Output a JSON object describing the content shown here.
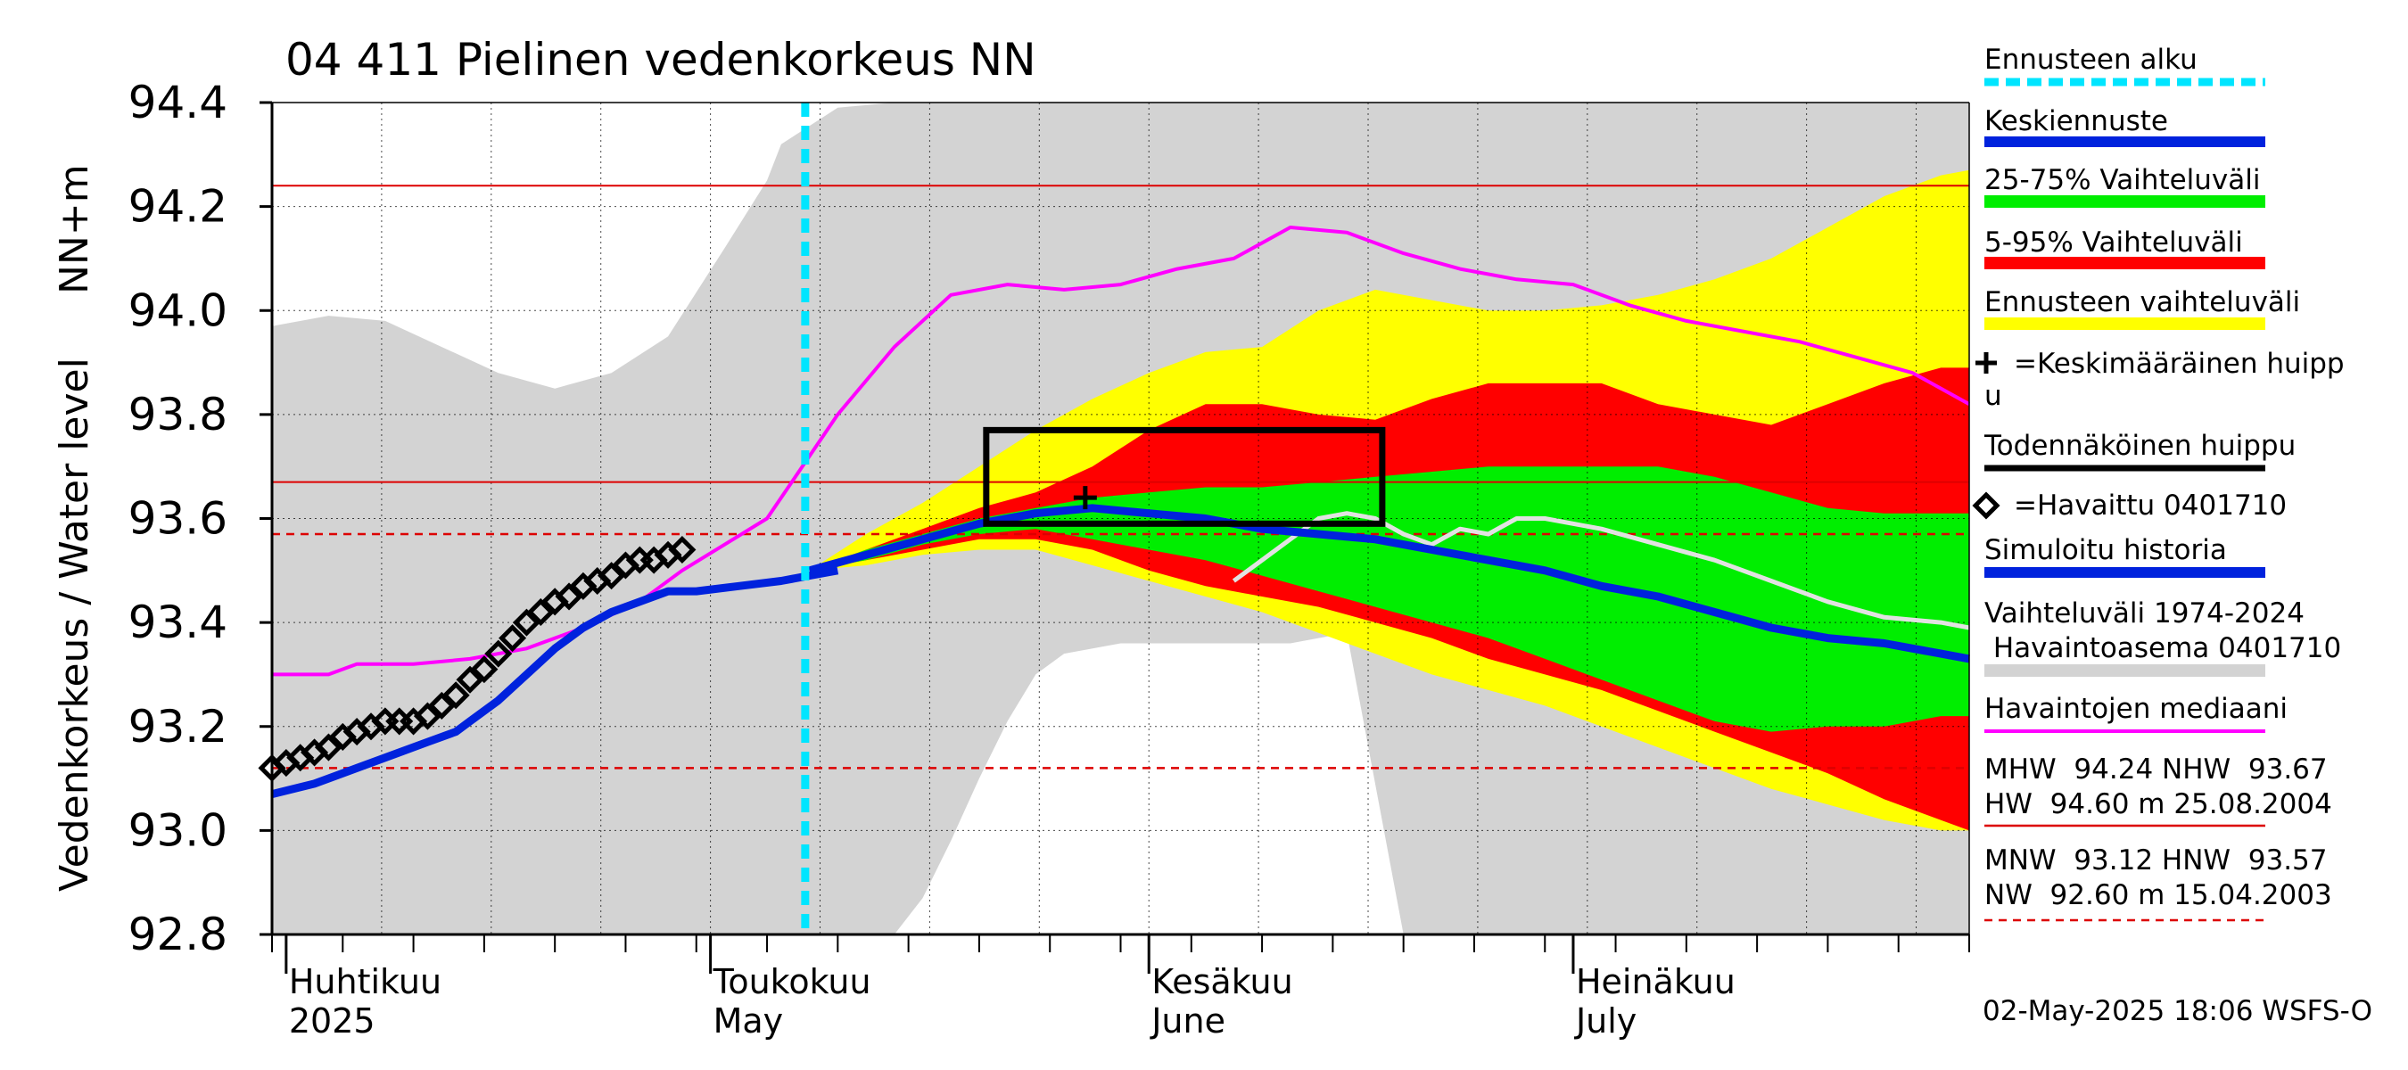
{
  "chart_data": {
    "type": "area",
    "title": "04 411 Pielinen vedenkorkeus NN",
    "ylabel_primary": "Vedenkorkeus / Water level",
    "ylabel_unit": "NN+m",
    "ylim": [
      92.8,
      94.4
    ],
    "yticks": [
      "92.8",
      "93.0",
      "93.2",
      "93.4",
      "93.6",
      "93.8",
      "94.0",
      "94.2",
      "94.4"
    ],
    "month_labels": [
      {
        "fi": "Huhtikuu",
        "en": "2025",
        "day": 1
      },
      {
        "fi": "Toukokuu",
        "en": "May",
        "day": 31
      },
      {
        "fi": "Kesäkuu",
        "en": "June",
        "day": 62
      },
      {
        "fi": "Heinäkuu",
        "en": "July",
        "day": 92
      }
    ],
    "x_range_days": [
      0,
      120
    ],
    "forecast_start_day": 37.7,
    "reference_lines": {
      "MHW": 94.24,
      "NHW": 93.67,
      "HW": 94.6,
      "MNW": 93.12,
      "HNW": 93.57,
      "NW": 92.6
    },
    "probable_peak_box": {
      "day_from": 50.5,
      "day_to": 78.5,
      "level_from": 93.59,
      "level_to": 93.77
    },
    "mean_peak_marker": {
      "day": 57.5,
      "level": 93.64
    },
    "observed": {
      "days": [
        0,
        1,
        2,
        3,
        4,
        5,
        6,
        7,
        8,
        9,
        10,
        11,
        12,
        13,
        14,
        15,
        16,
        17,
        18,
        19,
        20,
        21,
        22,
        23,
        24,
        25,
        26,
        27,
        28,
        29
      ],
      "values": [
        93.12,
        93.13,
        93.14,
        93.15,
        93.16,
        93.18,
        93.19,
        93.2,
        93.21,
        93.21,
        93.21,
        93.22,
        93.24,
        93.26,
        93.29,
        93.31,
        93.34,
        93.37,
        93.4,
        93.42,
        93.44,
        93.45,
        93.47,
        93.48,
        93.49,
        93.51,
        93.52,
        93.52,
        93.53,
        93.54
      ]
    },
    "simulated_history": {
      "days": [
        0,
        3,
        6,
        9,
        11,
        13,
        14,
        16,
        18,
        20,
        22,
        24,
        26,
        28,
        30,
        33,
        36,
        38,
        40
      ],
      "values": [
        93.07,
        93.09,
        93.12,
        93.15,
        93.17,
        93.19,
        93.21,
        93.25,
        93.3,
        93.35,
        93.39,
        93.42,
        93.44,
        93.46,
        93.46,
        93.47,
        93.48,
        93.49,
        93.5
      ]
    },
    "mean_forecast": {
      "days": [
        38,
        42,
        46,
        50,
        54,
        58,
        62,
        66,
        70,
        74,
        78,
        82,
        86,
        90,
        94,
        98,
        102,
        106,
        110,
        114,
        118,
        120
      ],
      "values": [
        93.5,
        93.53,
        93.56,
        93.59,
        93.61,
        93.62,
        93.61,
        93.6,
        93.58,
        93.57,
        93.56,
        93.54,
        93.52,
        93.5,
        93.47,
        93.45,
        93.42,
        93.39,
        93.37,
        93.36,
        93.34,
        93.33
      ]
    },
    "median_observed": {
      "days": [
        0,
        4,
        6,
        10,
        14,
        18,
        22,
        26,
        29,
        32,
        35,
        37,
        40,
        44,
        48,
        52,
        56,
        60,
        64,
        68,
        72,
        76,
        80,
        84,
        88,
        92,
        96,
        100,
        104,
        108,
        112,
        116,
        120
      ],
      "values": [
        93.3,
        93.3,
        93.32,
        93.32,
        93.33,
        93.35,
        93.39,
        93.44,
        93.5,
        93.55,
        93.6,
        93.68,
        93.8,
        93.93,
        94.03,
        94.05,
        94.04,
        94.05,
        94.08,
        94.1,
        94.16,
        94.15,
        94.11,
        94.08,
        94.06,
        94.05,
        94.01,
        93.98,
        93.96,
        93.94,
        93.91,
        93.88,
        93.82
      ]
    },
    "simulated_history_2025": {
      "days": [
        68,
        70,
        72,
        74,
        76,
        78,
        80,
        82,
        84,
        86,
        88,
        90,
        94,
        98,
        102,
        106,
        110,
        114,
        118,
        120
      ],
      "values": [
        93.48,
        93.52,
        93.56,
        93.6,
        93.61,
        93.6,
        93.57,
        93.55,
        93.58,
        93.57,
        93.6,
        93.6,
        93.58,
        93.55,
        93.52,
        93.48,
        93.44,
        93.41,
        93.4,
        93.39
      ]
    },
    "range_1974_2024": {
      "days": [
        0,
        4,
        8,
        12,
        16,
        20,
        24,
        28,
        32,
        35,
        36,
        40,
        44,
        46,
        48,
        50,
        52,
        54,
        56,
        60,
        64,
        68,
        72,
        76,
        80,
        84,
        88,
        92,
        96,
        100,
        104,
        108,
        112,
        116,
        120
      ],
      "upper": [
        93.97,
        93.99,
        93.98,
        93.93,
        93.88,
        93.85,
        93.88,
        93.95,
        94.12,
        94.25,
        94.32,
        94.39,
        94.4,
        94.4,
        94.4,
        94.4,
        94.4,
        94.4,
        94.4,
        94.4,
        94.4,
        94.4,
        94.4,
        94.4,
        94.4,
        94.4,
        94.4,
        94.4,
        94.4,
        94.4,
        94.4,
        94.4,
        94.4,
        94.4,
        94.4
      ],
      "lower": [
        92.8,
        92.8,
        92.8,
        92.8,
        92.8,
        92.8,
        92.8,
        92.8,
        92.8,
        92.8,
        92.8,
        92.8,
        92.8,
        92.87,
        92.98,
        93.1,
        93.21,
        93.3,
        93.34,
        93.36,
        93.36,
        93.36,
        93.36,
        93.38,
        92.8,
        92.8,
        92.8,
        92.8,
        92.8,
        92.8,
        92.8,
        92.8,
        92.8,
        92.8,
        92.8
      ]
    },
    "forecast_bands": {
      "days": [
        38,
        42,
        46,
        50,
        54,
        58,
        62,
        66,
        70,
        74,
        78,
        82,
        86,
        90,
        94,
        98,
        102,
        106,
        110,
        114,
        118,
        120
      ],
      "forecast_upper": [
        93.5,
        93.57,
        93.63,
        93.7,
        93.77,
        93.83,
        93.88,
        93.92,
        93.93,
        94.0,
        94.04,
        94.02,
        94.0,
        94.0,
        94.01,
        94.03,
        94.06,
        94.1,
        94.16,
        94.22,
        94.26,
        94.27
      ],
      "p95": [
        93.5,
        93.54,
        93.58,
        93.62,
        93.65,
        93.7,
        93.77,
        93.82,
        93.82,
        93.8,
        93.79,
        93.83,
        93.86,
        93.86,
        93.86,
        93.82,
        93.8,
        93.78,
        93.82,
        93.86,
        93.89,
        93.89
      ],
      "p75": [
        93.5,
        93.54,
        93.57,
        93.6,
        93.62,
        93.64,
        93.65,
        93.66,
        93.66,
        93.67,
        93.68,
        93.69,
        93.7,
        93.7,
        93.7,
        93.7,
        93.68,
        93.65,
        93.62,
        93.61,
        93.61,
        93.61
      ],
      "p25": [
        93.5,
        93.52,
        93.55,
        93.57,
        93.58,
        93.56,
        93.54,
        93.52,
        93.49,
        93.46,
        93.43,
        93.4,
        93.37,
        93.33,
        93.29,
        93.25,
        93.21,
        93.19,
        93.2,
        93.2,
        93.22,
        93.22
      ],
      "p5": [
        93.5,
        93.52,
        93.54,
        93.56,
        93.56,
        93.54,
        93.5,
        93.47,
        93.45,
        93.43,
        93.4,
        93.37,
        93.33,
        93.3,
        93.27,
        93.23,
        93.19,
        93.15,
        93.11,
        93.06,
        93.02,
        93.0
      ],
      "forecast_lower": [
        93.5,
        93.51,
        93.53,
        93.54,
        93.54,
        93.51,
        93.48,
        93.45,
        93.42,
        93.38,
        93.34,
        93.3,
        93.27,
        93.24,
        93.2,
        93.16,
        93.12,
        93.08,
        93.05,
        93.02,
        93.0,
        93.0
      ]
    }
  },
  "legend": {
    "items": [
      {
        "label": "Ennusteen alku",
        "color": "#00e5ff",
        "style": "dashed"
      },
      {
        "label": "Keskiennuste",
        "color": "#0022dd",
        "style": "solid"
      },
      {
        "label": "25-75% Vaihteluväli",
        "color": "#00ee00",
        "style": "solid"
      },
      {
        "label": "5-95% Vaihteluväli",
        "color": "#ff0000",
        "style": "solid"
      },
      {
        "label": "Ennusteen vaihteluväli",
        "color": "#ffff00",
        "style": "solid"
      },
      {
        "label": "=Keskimääräinen huipp",
        "label2": "u",
        "color": "#000000",
        "style": "plus"
      },
      {
        "label": "Todennäköinen huippu",
        "color": "#000000",
        "style": "solid"
      },
      {
        "label": "=Havaittu 0401710",
        "color": "#000000",
        "style": "diamond"
      },
      {
        "label": "Simuloitu historia",
        "color": "#0022dd",
        "style": "solid"
      },
      {
        "label": "Vaihteluväli 1974-2024",
        "label2": " Havaintoasema 0401710",
        "color": "#d3d3d3",
        "style": "solid"
      },
      {
        "label": "Havaintojen mediaani",
        "color": "#ff00ff",
        "style": "solid"
      }
    ],
    "stats_line1": "MHW  94.24 NHW  93.67",
    "stats_line2": "HW  94.60 m 25.08.2004",
    "stats_line3": "MNW  93.12 HNW  93.57",
    "stats_line4": "NW  92.60 m 15.04.2003"
  },
  "footer": {
    "timestamp": "02-May-2025 18:06 WSFS-O"
  },
  "colors": {
    "range": "#d3d3d3",
    "forecast": "#ffff00",
    "p5_95": "#ff0000",
    "p25_75": "#00ee00",
    "mean": "#0022dd",
    "median": "#ff00ff",
    "sim2025": "#e2e2e2",
    "ref": "#dd0000",
    "forecast_start": "#00e5ff"
  }
}
